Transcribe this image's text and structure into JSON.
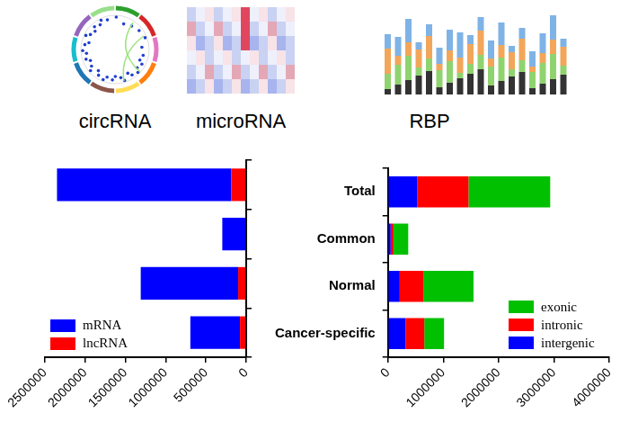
{
  "header": {
    "labels": [
      "circRNA",
      "microRNA",
      "RBP"
    ]
  },
  "chart_data": [
    {
      "type": "bar",
      "orientation": "horizontal",
      "stacked": true,
      "grid": false,
      "legend": "bottom-left",
      "tick_labels": "x",
      "categories": [
        "Total",
        "Common",
        "Normal",
        "Cancer-specific"
      ],
      "series": [
        {
          "name": "mRNA",
          "color": "#0000ff",
          "values": [
            2163000,
            289000,
            1210000,
            617000
          ]
        },
        {
          "name": "lncRNA",
          "color": "#ff0000",
          "values": [
            187000,
            8000,
            100000,
            77000
          ]
        }
      ],
      "xlim": [
        2500000,
        0
      ],
      "xticks": [
        2500000,
        2000000,
        1500000,
        1000000,
        500000,
        0
      ]
    },
    {
      "type": "bar",
      "orientation": "horizontal",
      "stacked": true,
      "grid": false,
      "legend": "bottom-right",
      "tick_labels": true,
      "categories": [
        "Total",
        "Common",
        "Normal",
        "Cancer-specific"
      ],
      "series": [
        {
          "name": "intergenic",
          "color": "#0000ff",
          "values": [
            533000,
            50000,
            213000,
            320000
          ]
        },
        {
          "name": "intronic",
          "color": "#ff0000",
          "values": [
            924000,
            50000,
            427000,
            338000
          ]
        },
        {
          "name": "exonic",
          "color": "#00c000",
          "values": [
            1476000,
            267000,
            907000,
            356000
          ]
        }
      ],
      "xlim": [
        0,
        4000000
      ],
      "xticks": [
        0,
        1000000,
        2000000,
        3000000,
        4000000
      ]
    }
  ]
}
